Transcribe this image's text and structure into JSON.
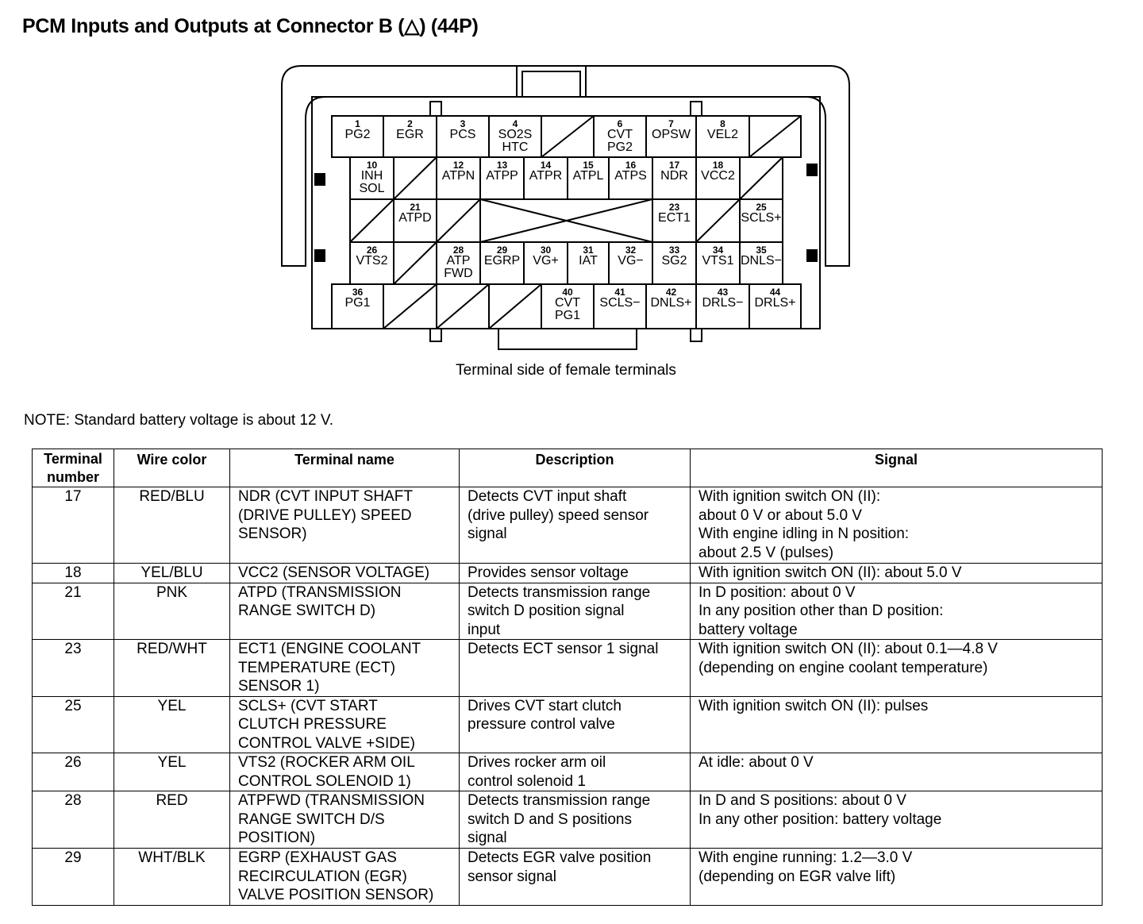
{
  "title": "PCM Inputs and Outputs at Connector B (△) (44P)",
  "connector": {
    "caption": "Terminal side of female terminals",
    "rows": [
      [
        {
          "num": "1",
          "label": "PG2"
        },
        {
          "num": "2",
          "label": "EGR"
        },
        {
          "num": "3",
          "label": "PCS"
        },
        {
          "num": "4",
          "label": "SO2S\nHTC"
        },
        {
          "type": "slash"
        },
        {
          "num": "6",
          "label": "CVT\nPG2"
        },
        {
          "num": "7",
          "label": "OPSW"
        },
        {
          "num": "8",
          "label": "VEL2"
        },
        {
          "type": "slash"
        }
      ],
      [
        {
          "num": "10",
          "label": "INH\nSOL"
        },
        {
          "type": "slash"
        },
        {
          "num": "12",
          "label": "ATPN"
        },
        {
          "num": "13",
          "label": "ATPP"
        },
        {
          "num": "14",
          "label": "ATPR"
        },
        {
          "num": "15",
          "label": "ATPL"
        },
        {
          "num": "16",
          "label": "ATPS"
        },
        {
          "num": "17",
          "label": "NDR"
        },
        {
          "num": "18",
          "label": "VCC2"
        },
        {
          "type": "slash"
        }
      ],
      [
        {
          "type": "slash"
        },
        {
          "num": "21",
          "label": "ATPD"
        },
        {
          "type": "slash"
        },
        {
          "type": "cross"
        },
        {
          "num": "23",
          "label": "ECT1"
        },
        {
          "type": "slash"
        },
        {
          "num": "25",
          "label": "SCLS+"
        }
      ],
      [
        {
          "num": "26",
          "label": "VTS2"
        },
        {
          "type": "slash"
        },
        {
          "num": "28",
          "label": "ATP\nFWD"
        },
        {
          "num": "29",
          "label": "EGRP"
        },
        {
          "num": "30",
          "label": "VG+"
        },
        {
          "num": "31",
          "label": "IAT"
        },
        {
          "num": "32",
          "label": "VG−"
        },
        {
          "num": "33",
          "label": "SG2"
        },
        {
          "num": "34",
          "label": "VTS1"
        },
        {
          "num": "35",
          "label": "DNLS−"
        }
      ],
      [
        {
          "num": "36",
          "label": "PG1"
        },
        {
          "type": "slash"
        },
        {
          "type": "slash"
        },
        {
          "type": "slash"
        },
        {
          "num": "40",
          "label": "CVT\nPG1"
        },
        {
          "num": "41",
          "label": "SCLS−"
        },
        {
          "num": "42",
          "label": "DNLS+"
        },
        {
          "num": "43",
          "label": "DRLS−"
        },
        {
          "num": "44",
          "label": "DRLS+"
        }
      ]
    ]
  },
  "note": "NOTE: Standard battery voltage is about 12 V.",
  "table": {
    "headers": [
      "Terminal\nnumber",
      "Wire color",
      "Terminal name",
      "Description",
      "Signal"
    ],
    "rows": [
      [
        "17",
        "RED/BLU",
        "NDR (CVT INPUT SHAFT\n(DRIVE PULLEY) SPEED\nSENSOR)",
        "Detects CVT input shaft\n(drive pulley) speed sensor\nsignal",
        "With ignition switch ON (II):\nabout 0 V or about 5.0 V\nWith engine idling in N position:\nabout 2.5 V (pulses)"
      ],
      [
        "18",
        "YEL/BLU",
        "VCC2 (SENSOR VOLTAGE)",
        "Provides sensor voltage",
        "With ignition switch ON (II): about 5.0 V"
      ],
      [
        "21",
        "PNK",
        "ATPD (TRANSMISSION\nRANGE SWITCH D)",
        "Detects transmission range\nswitch D position signal\ninput",
        "In D position: about 0 V\nIn any position other than D position:\nbattery voltage"
      ],
      [
        "23",
        "RED/WHT",
        "ECT1 (ENGINE COOLANT\nTEMPERATURE (ECT)\nSENSOR 1)",
        "Detects ECT sensor 1 signal",
        "With ignition switch ON (II): about 0.1—4.8 V\n(depending on engine coolant temperature)"
      ],
      [
        "25",
        "YEL",
        "SCLS+ (CVT START\nCLUTCH PRESSURE\nCONTROL VALVE +SIDE)",
        "Drives CVT start clutch\npressure control valve",
        "With ignition switch ON (II): pulses"
      ],
      [
        "26",
        "YEL",
        "VTS2 (ROCKER ARM OIL\nCONTROL SOLENOID 1)",
        "Drives rocker arm oil\ncontrol solenoid 1",
        "At idle: about 0 V"
      ],
      [
        "28",
        "RED",
        "ATPFWD (TRANSMISSION\nRANGE SWITCH D/S\nPOSITION)",
        "Detects transmission range\nswitch D and S positions\nsignal",
        "In D and S positions: about 0 V\nIn any other position: battery voltage"
      ],
      [
        "29",
        "WHT/BLK",
        "EGRP (EXHAUST GAS\nRECIRCULATION (EGR)\nVALVE POSITION SENSOR)",
        "Detects EGR valve position\nsensor signal",
        "With engine running: 1.2—3.0 V\n(depending on EGR valve lift)"
      ]
    ]
  }
}
